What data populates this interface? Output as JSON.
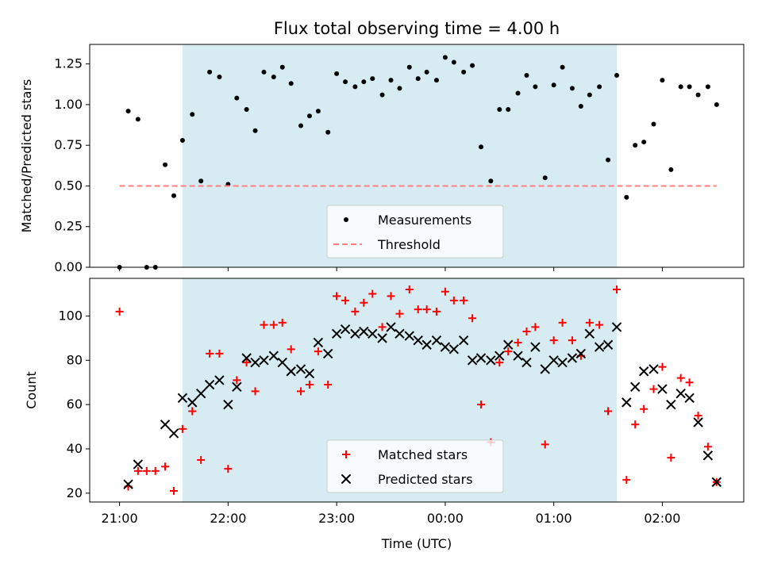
{
  "chart_data": {
    "type": "scatter",
    "title": "Flux total observing time = 4.00 h",
    "xlabel": "Time (UTC)",
    "x_unit": "hours since 21:00 UTC",
    "xlim": [
      -0.275,
      5.75
    ],
    "x_ticks": [
      {
        "value": 0,
        "label": "21:00"
      },
      {
        "value": 1,
        "label": "22:00"
      },
      {
        "value": 2,
        "label": "23:00"
      },
      {
        "value": 3,
        "label": "00:00"
      },
      {
        "value": 4,
        "label": "01:00"
      },
      {
        "value": 5,
        "label": "02:00"
      }
    ],
    "shaded_span": [
      0.58,
      4.58
    ],
    "panels": [
      {
        "ylabel": "Matched/Predicted stars",
        "ylim": [
          0,
          1.37
        ],
        "yticks": [
          "0.00",
          "0.25",
          "0.50",
          "0.75",
          "1.00",
          "1.25"
        ],
        "legend": [
          "Measurements",
          "Threshold"
        ],
        "series": [
          {
            "name": "Measurements",
            "marker": "dot",
            "color": "#000000",
            "points": [
              [
                0.0,
                0.0
              ],
              [
                0.08,
                0.96
              ],
              [
                0.17,
                0.91
              ],
              [
                0.25,
                0.0
              ],
              [
                0.33,
                0.0
              ],
              [
                0.42,
                0.63
              ],
              [
                0.5,
                0.44
              ],
              [
                0.58,
                0.78
              ],
              [
                0.67,
                0.94
              ],
              [
                0.75,
                0.53
              ],
              [
                0.83,
                1.2
              ],
              [
                0.92,
                1.17
              ],
              [
                1.0,
                0.51
              ],
              [
                1.08,
                1.04
              ],
              [
                1.17,
                0.97
              ],
              [
                1.25,
                0.84
              ],
              [
                1.33,
                1.2
              ],
              [
                1.42,
                1.17
              ],
              [
                1.5,
                1.23
              ],
              [
                1.58,
                1.13
              ],
              [
                1.67,
                0.87
              ],
              [
                1.75,
                0.93
              ],
              [
                1.83,
                0.96
              ],
              [
                1.92,
                0.83
              ],
              [
                2.0,
                1.19
              ],
              [
                2.08,
                1.14
              ],
              [
                2.17,
                1.11
              ],
              [
                2.25,
                1.14
              ],
              [
                2.33,
                1.16
              ],
              [
                2.42,
                1.06
              ],
              [
                2.5,
                1.15
              ],
              [
                2.58,
                1.1
              ],
              [
                2.67,
                1.23
              ],
              [
                2.75,
                1.16
              ],
              [
                2.83,
                1.2
              ],
              [
                2.92,
                1.15
              ],
              [
                3.0,
                1.29
              ],
              [
                3.08,
                1.26
              ],
              [
                3.17,
                1.2
              ],
              [
                3.25,
                1.24
              ],
              [
                3.33,
                0.74
              ],
              [
                3.42,
                0.53
              ],
              [
                3.5,
                0.97
              ],
              [
                3.58,
                0.97
              ],
              [
                3.67,
                1.07
              ],
              [
                3.75,
                1.18
              ],
              [
                3.83,
                1.11
              ],
              [
                3.92,
                0.55
              ],
              [
                4.0,
                1.12
              ],
              [
                4.08,
                1.23
              ],
              [
                4.17,
                1.1
              ],
              [
                4.25,
                0.99
              ],
              [
                4.33,
                1.06
              ],
              [
                4.42,
                1.11
              ],
              [
                4.5,
                0.66
              ],
              [
                4.58,
                1.18
              ],
              [
                4.67,
                0.43
              ],
              [
                4.75,
                0.75
              ],
              [
                4.83,
                0.77
              ],
              [
                4.92,
                0.88
              ],
              [
                5.0,
                1.15
              ],
              [
                5.08,
                0.6
              ],
              [
                5.17,
                1.11
              ],
              [
                5.25,
                1.11
              ],
              [
                5.33,
                1.06
              ],
              [
                5.42,
                1.11
              ],
              [
                5.5,
                1.0
              ]
            ]
          },
          {
            "name": "Threshold",
            "style": "dashed",
            "color": "#ff7f7f",
            "points": [
              [
                0.0,
                0.5
              ],
              [
                5.5,
                0.5
              ]
            ]
          }
        ]
      },
      {
        "ylabel": "Count",
        "ylim": [
          16,
          117
        ],
        "yticks": [
          "20",
          "40",
          "60",
          "80",
          "100"
        ],
        "legend": [
          "Matched stars",
          "Predicted stars"
        ],
        "series": [
          {
            "name": "Matched stars",
            "marker": "plus",
            "color": "#ff0000",
            "points": [
              [
                0.0,
                102
              ],
              [
                0.08,
                23
              ],
              [
                0.17,
                30
              ],
              [
                0.25,
                30
              ],
              [
                0.33,
                30
              ],
              [
                0.42,
                32
              ],
              [
                0.5,
                21
              ],
              [
                0.58,
                49
              ],
              [
                0.67,
                57
              ],
              [
                0.75,
                35
              ],
              [
                0.83,
                83
              ],
              [
                0.92,
                83
              ],
              [
                1.0,
                31
              ],
              [
                1.08,
                71
              ],
              [
                1.17,
                79
              ],
              [
                1.25,
                66
              ],
              [
                1.33,
                96
              ],
              [
                1.42,
                96
              ],
              [
                1.5,
                97
              ],
              [
                1.58,
                85
              ],
              [
                1.67,
                66
              ],
              [
                1.75,
                69
              ],
              [
                1.83,
                84
              ],
              [
                1.92,
                69
              ],
              [
                2.0,
                109
              ],
              [
                2.08,
                107
              ],
              [
                2.17,
                102
              ],
              [
                2.25,
                106
              ],
              [
                2.33,
                110
              ],
              [
                2.42,
                95
              ],
              [
                2.5,
                109
              ],
              [
                2.58,
                101
              ],
              [
                2.67,
                112
              ],
              [
                2.75,
                103
              ],
              [
                2.83,
                103
              ],
              [
                2.92,
                102
              ],
              [
                3.0,
                111
              ],
              [
                3.08,
                107
              ],
              [
                3.17,
                107
              ],
              [
                3.25,
                99
              ],
              [
                3.33,
                60
              ],
              [
                3.42,
                43
              ],
              [
                3.5,
                79
              ],
              [
                3.58,
                84
              ],
              [
                3.67,
                88
              ],
              [
                3.75,
                93
              ],
              [
                3.83,
                95
              ],
              [
                3.92,
                42
              ],
              [
                4.0,
                89
              ],
              [
                4.08,
                97
              ],
              [
                4.17,
                89
              ],
              [
                4.25,
                82
              ],
              [
                4.33,
                97
              ],
              [
                4.42,
                96
              ],
              [
                4.5,
                57
              ],
              [
                4.58,
                112
              ],
              [
                4.67,
                26
              ],
              [
                4.75,
                51
              ],
              [
                4.83,
                58
              ],
              [
                4.92,
                67
              ],
              [
                5.0,
                77
              ],
              [
                5.08,
                36
              ],
              [
                5.17,
                72
              ],
              [
                5.25,
                70
              ],
              [
                5.33,
                55
              ],
              [
                5.42,
                41
              ],
              [
                5.5,
                25
              ]
            ]
          },
          {
            "name": "Predicted stars",
            "marker": "x",
            "color": "#000000",
            "points": [
              [
                0.08,
                24
              ],
              [
                0.17,
                33
              ],
              [
                0.42,
                51
              ],
              [
                0.5,
                47
              ],
              [
                0.58,
                63
              ],
              [
                0.67,
                61
              ],
              [
                0.75,
                65
              ],
              [
                0.83,
                69
              ],
              [
                0.92,
                71
              ],
              [
                1.0,
                60
              ],
              [
                1.08,
                68
              ],
              [
                1.17,
                81
              ],
              [
                1.25,
                79
              ],
              [
                1.33,
                80
              ],
              [
                1.42,
                82
              ],
              [
                1.5,
                79
              ],
              [
                1.58,
                75
              ],
              [
                1.67,
                76
              ],
              [
                1.75,
                74
              ],
              [
                1.83,
                88
              ],
              [
                1.92,
                83
              ],
              [
                2.0,
                92
              ],
              [
                2.08,
                94
              ],
              [
                2.17,
                92
              ],
              [
                2.25,
                93
              ],
              [
                2.33,
                92
              ],
              [
                2.42,
                90
              ],
              [
                2.5,
                95
              ],
              [
                2.58,
                92
              ],
              [
                2.67,
                91
              ],
              [
                2.75,
                89
              ],
              [
                2.83,
                87
              ],
              [
                2.92,
                89
              ],
              [
                3.0,
                86
              ],
              [
                3.08,
                85
              ],
              [
                3.17,
                89
              ],
              [
                3.25,
                80
              ],
              [
                3.33,
                81
              ],
              [
                3.42,
                80
              ],
              [
                3.5,
                82
              ],
              [
                3.58,
                87
              ],
              [
                3.67,
                82
              ],
              [
                3.75,
                79
              ],
              [
                3.83,
                86
              ],
              [
                3.92,
                76
              ],
              [
                4.0,
                80
              ],
              [
                4.08,
                79
              ],
              [
                4.17,
                81
              ],
              [
                4.25,
                83
              ],
              [
                4.33,
                92
              ],
              [
                4.42,
                86
              ],
              [
                4.5,
                87
              ],
              [
                4.58,
                95
              ],
              [
                4.67,
                61
              ],
              [
                4.75,
                68
              ],
              [
                4.83,
                75
              ],
              [
                4.92,
                76
              ],
              [
                5.0,
                67
              ],
              [
                5.08,
                60
              ],
              [
                5.17,
                65
              ],
              [
                5.25,
                63
              ],
              [
                5.33,
                52
              ],
              [
                5.42,
                37
              ],
              [
                5.5,
                25
              ]
            ]
          }
        ]
      }
    ]
  },
  "colors": {
    "span_fill": "#add8e6",
    "legend_bg": "#ffffff"
  }
}
